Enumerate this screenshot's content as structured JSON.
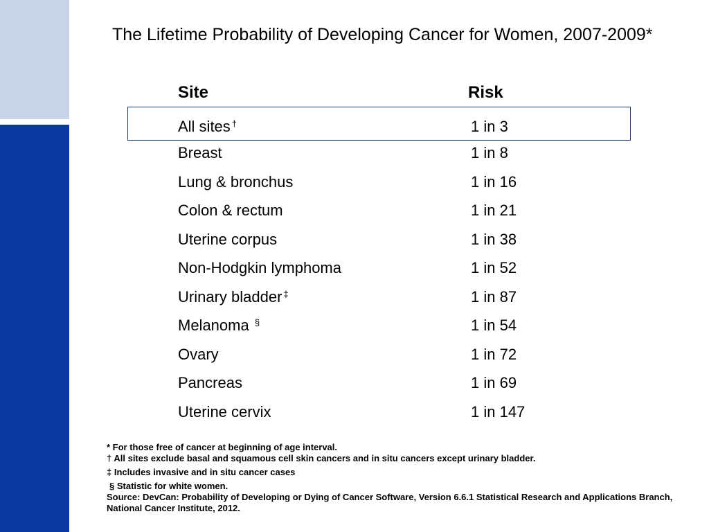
{
  "title": "The Lifetime Probability of Developing Cancer for Women, 2007-2009*",
  "table": {
    "headers": {
      "site": "Site",
      "risk": "Risk"
    },
    "rows": [
      {
        "site": "All sites",
        "mark": "†",
        "risk": "1 in 3"
      },
      {
        "site": "Breast",
        "mark": "",
        "risk": "1 in 8"
      },
      {
        "site": "Lung & bronchus",
        "mark": "",
        "risk": "1 in 16"
      },
      {
        "site": "Colon & rectum",
        "mark": "",
        "risk": "1 in 21"
      },
      {
        "site": "Uterine corpus",
        "mark": "",
        "risk": "1 in 38"
      },
      {
        "site": "Non-Hodgkin lymphoma",
        "mark": "",
        "risk": "1 in 52"
      },
      {
        "site": "Urinary bladder",
        "mark": "‡",
        "risk": "1 in 87"
      },
      {
        "site": "Melanoma ",
        "mark": "§",
        "risk": "1 in 54"
      },
      {
        "site": "Ovary",
        "mark": "",
        "risk": "1 in 72"
      },
      {
        "site": "Pancreas",
        "mark": "",
        "risk": "1 in 69"
      },
      {
        "site": "Uterine cervix",
        "mark": "",
        "risk": "1 in 147"
      }
    ]
  },
  "footnotes": {
    "asterisk": "* For those free of cancer at beginning of age interval.",
    "dagger": "† All sites exclude basal and squamous cell skin cancers and in situ cancers except urinary bladder.",
    "double_dagger": "‡ Includes invasive and in situ cancer cases",
    "section": "§ Statistic for white women.",
    "source": "Source: DevCan: Probability of Developing or Dying of Cancer Software, Version 6.6.1 Statistical Research and Applications Branch, National Cancer Institute, 2012."
  },
  "colors": {
    "sidebar_light": "#c9d3e8",
    "sidebar_dark": "#0a3aa0",
    "box_border": "#1f3a78"
  }
}
